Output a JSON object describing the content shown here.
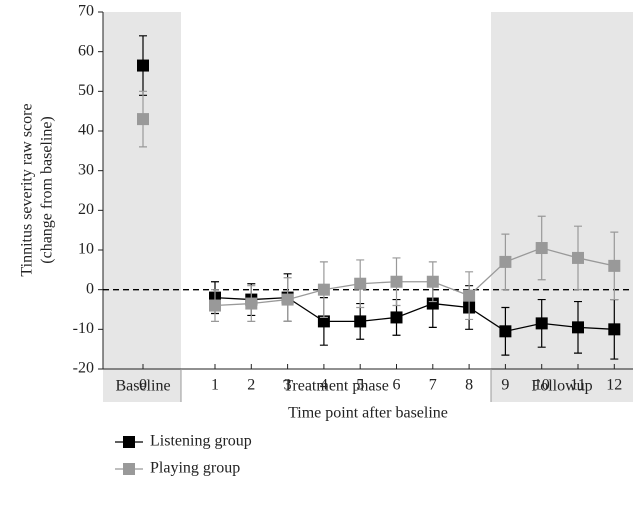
{
  "chart_data": {
    "type": "line",
    "xlabel": "Time point after baseline",
    "ylabel": [
      "Tinnitus severity raw score",
      "(change from baseline)"
    ],
    "categories": [
      "0",
      "1",
      "2",
      "3",
      "4",
      "5",
      "6",
      "7",
      "8",
      "9",
      "10",
      "11",
      "12"
    ],
    "groups": [
      "Baseline",
      "Treatment phase",
      "Followup"
    ],
    "ylim": [
      -20,
      70
    ],
    "yticks": [
      -20,
      -10,
      0,
      10,
      20,
      30,
      40,
      50,
      60,
      70
    ],
    "reference_line": 0,
    "series": [
      {
        "name": "Listening group",
        "color": "#000000",
        "values": [
          56.5,
          -2,
          -2.5,
          -2,
          -8,
          -8,
          -7,
          -3.5,
          -4.5,
          -10.5,
          -8.5,
          -9.5,
          -10
        ],
        "errors": [
          7.5,
          4,
          4,
          6,
          6,
          4.5,
          4.5,
          6,
          5.5,
          6,
          6,
          6.5,
          7.5
        ]
      },
      {
        "name": "Playing group",
        "color": "#999999",
        "values": [
          43,
          -4,
          -3.5,
          -2.5,
          0,
          1.5,
          2,
          2,
          -1.5,
          7,
          10.5,
          8,
          6
        ],
        "errors": [
          7,
          4,
          4.5,
          5.5,
          7,
          6,
          6,
          5,
          6,
          7,
          8,
          8,
          8.5
        ]
      }
    ]
  }
}
